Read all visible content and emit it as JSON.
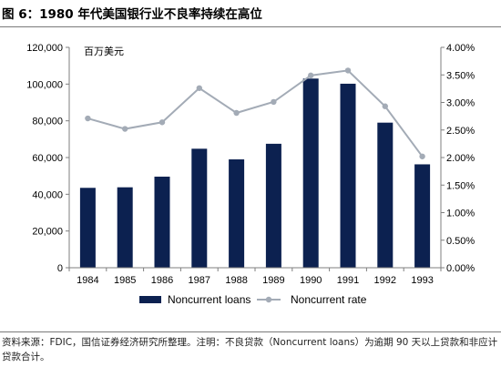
{
  "figure_title": "图 6：1980 年代美国银行业不良率持续在高位",
  "source_note": "资料来源：FDIC，国信证券经济研究所整理。注明：不良贷款（Noncurrent loans）为逾期 90 天以上贷款和非应计贷款合计。",
  "chart_data": {
    "type": "bar+line",
    "unit_label": "百万美元",
    "categories": [
      "1984",
      "1985",
      "1986",
      "1987",
      "1988",
      "1989",
      "1990",
      "1991",
      "1992",
      "1993"
    ],
    "series": [
      {
        "name": "Noncurrent loans",
        "type": "bar",
        "axis": "left",
        "values": [
          43500,
          43800,
          49600,
          64800,
          59000,
          67500,
          103000,
          100200,
          79000,
          56300
        ]
      },
      {
        "name": "Noncurrent rate",
        "type": "line",
        "axis": "right",
        "values": [
          2.71,
          2.52,
          2.64,
          3.26,
          2.81,
          3.01,
          3.49,
          3.58,
          2.93,
          2.02
        ]
      }
    ],
    "y_left": {
      "min": 0,
      "max": 120000,
      "step": 20000,
      "tick_labels": [
        "0",
        "20,000",
        "40,000",
        "60,000",
        "80,000",
        "100,000",
        "120,000"
      ]
    },
    "y_right": {
      "min": 0,
      "max": 4,
      "step": 0.5,
      "tick_labels": [
        "0.00%",
        "0.50%",
        "1.00%",
        "1.50%",
        "2.00%",
        "2.50%",
        "3.00%",
        "3.50%",
        "4.00%"
      ]
    },
    "grid": false,
    "legend_position": "bottom",
    "colors": {
      "bar": "#0c2150",
      "line": "#a3abb6",
      "axis": "#7f7f7f"
    }
  }
}
